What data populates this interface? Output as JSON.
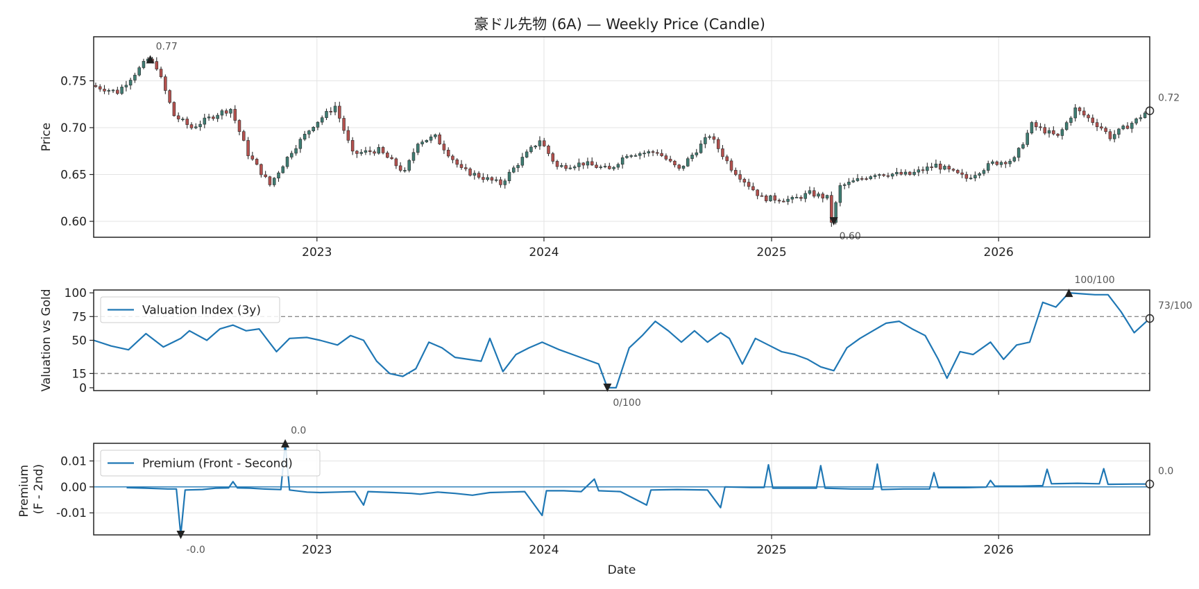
{
  "title": "豪ドル先物 (6A) — Weekly Price (Candle)",
  "chart_data": [
    {
      "type": "candlestick",
      "ylabel": "Price",
      "ylim": [
        0.583,
        0.797
      ],
      "yticks": [
        "0.60",
        "0.65",
        "0.70",
        "0.75"
      ],
      "yticks_values": [
        0.6,
        0.65,
        0.7,
        0.75
      ],
      "x_range": [
        "2022-01-07",
        "2026-09-01"
      ],
      "xticks": [
        "2023",
        "2024",
        "2025",
        "2026"
      ],
      "grid": true,
      "colors": {
        "up": "#3f7d73",
        "down": "#b4514e",
        "wick": "#2a2a2a"
      },
      "anchors": [
        [
          "2022-01-07",
          0.745
        ],
        [
          "2022-02-18",
          0.738
        ],
        [
          "2022-04-08",
          0.773
        ],
        [
          "2022-04-22",
          0.765
        ],
        [
          "2022-05-20",
          0.713
        ],
        [
          "2022-06-17",
          0.7
        ],
        [
          "2022-07-29",
          0.715
        ],
        [
          "2022-08-19",
          0.72
        ],
        [
          "2022-09-16",
          0.672
        ],
        [
          "2022-10-21",
          0.639
        ],
        [
          "2022-11-25",
          0.675
        ],
        [
          "2022-12-30",
          0.703
        ],
        [
          "2023-02-03",
          0.723
        ],
        [
          "2023-03-03",
          0.672
        ],
        [
          "2023-04-14",
          0.676
        ],
        [
          "2023-05-26",
          0.652
        ],
        [
          "2023-06-16",
          0.685
        ],
        [
          "2023-07-14",
          0.69
        ],
        [
          "2023-08-25",
          0.655
        ],
        [
          "2023-10-27",
          0.64
        ],
        [
          "2023-11-24",
          0.662
        ],
        [
          "2023-12-29",
          0.687
        ],
        [
          "2024-01-26",
          0.658
        ],
        [
          "2024-03-08",
          0.662
        ],
        [
          "2024-04-19",
          0.655
        ],
        [
          "2024-05-17",
          0.672
        ],
        [
          "2024-07-05",
          0.674
        ],
        [
          "2024-08-09",
          0.655
        ],
        [
          "2024-09-27",
          0.692
        ],
        [
          "2024-11-01",
          0.657
        ],
        [
          "2024-12-20",
          0.625
        ],
        [
          "2025-02-07",
          0.623
        ],
        [
          "2025-03-07",
          0.63
        ],
        [
          "2025-04-04",
          0.625
        ],
        [
          "2025-04-11",
          0.6
        ],
        [
          "2025-04-25",
          0.637
        ],
        [
          "2025-06-20",
          0.651
        ],
        [
          "2025-08-15",
          0.65
        ],
        [
          "2025-09-26",
          0.66
        ],
        [
          "2025-11-14",
          0.646
        ],
        [
          "2025-12-26",
          0.662
        ],
        [
          "2026-01-30",
          0.666
        ],
        [
          "2026-02-27",
          0.703
        ],
        [
          "2026-04-10",
          0.69
        ],
        [
          "2026-05-08",
          0.72
        ],
        [
          "2026-06-19",
          0.7
        ],
        [
          "2026-07-03",
          0.69
        ],
        [
          "2026-08-14",
          0.708
        ],
        [
          "2026-09-01",
          0.718
        ]
      ],
      "annotations": [
        {
          "label": "0.77",
          "date": "2022-04-08",
          "value": 0.773,
          "marker": "triangle-up"
        },
        {
          "label": "0.60",
          "date": "2025-04-11",
          "value": 0.6,
          "marker": "triangle-down"
        },
        {
          "label": "0.72",
          "date": "2026-09-01",
          "value": 0.718,
          "marker": "circle"
        }
      ]
    },
    {
      "type": "line",
      "ylabel": "Valuation vs Gold",
      "ylim": [
        -3,
        103
      ],
      "yticks": [
        "0",
        "15",
        "50",
        "75",
        "100"
      ],
      "yticks_values": [
        0,
        15,
        50,
        75,
        100
      ],
      "reference_lines": [
        15,
        75
      ],
      "series": [
        {
          "name": "Valuation Index (3y)",
          "color": "#1f77b4",
          "points": [
            [
              "2022-01-07",
              50
            ],
            [
              "2022-02-04",
              44
            ],
            [
              "2022-03-04",
              40
            ],
            [
              "2022-04-01",
              57
            ],
            [
              "2022-04-29",
              43
            ],
            [
              "2022-05-27",
              52
            ],
            [
              "2022-06-10",
              60
            ],
            [
              "2022-07-08",
              50
            ],
            [
              "2022-07-29",
              62
            ],
            [
              "2022-08-19",
              66
            ],
            [
              "2022-09-09",
              60
            ],
            [
              "2022-09-30",
              62
            ],
            [
              "2022-10-28",
              38
            ],
            [
              "2022-11-18",
              52
            ],
            [
              "2022-12-16",
              53
            ],
            [
              "2023-01-06",
              50
            ],
            [
              "2023-02-03",
              45
            ],
            [
              "2023-02-24",
              55
            ],
            [
              "2023-03-17",
              50
            ],
            [
              "2023-04-07",
              28
            ],
            [
              "2023-04-28",
              15
            ],
            [
              "2023-05-19",
              12
            ],
            [
              "2023-06-09",
              20
            ],
            [
              "2023-06-30",
              48
            ],
            [
              "2023-07-21",
              42
            ],
            [
              "2023-08-11",
              32
            ],
            [
              "2023-09-01",
              30
            ],
            [
              "2023-09-22",
              28
            ],
            [
              "2023-10-06",
              52
            ],
            [
              "2023-10-27",
              17
            ],
            [
              "2023-11-17",
              35
            ],
            [
              "2023-12-08",
              42
            ],
            [
              "2023-12-29",
              48
            ],
            [
              "2024-01-26",
              40
            ],
            [
              "2024-02-16",
              35
            ],
            [
              "2024-03-08",
              30
            ],
            [
              "2024-03-29",
              25
            ],
            [
              "2024-04-12",
              0
            ],
            [
              "2024-04-26",
              0
            ],
            [
              "2024-05-17",
              42
            ],
            [
              "2024-06-07",
              55
            ],
            [
              "2024-06-28",
              70
            ],
            [
              "2024-07-19",
              60
            ],
            [
              "2024-08-09",
              48
            ],
            [
              "2024-08-30",
              60
            ],
            [
              "2024-09-20",
              48
            ],
            [
              "2024-10-11",
              58
            ],
            [
              "2024-10-25",
              52
            ],
            [
              "2024-11-15",
              25
            ],
            [
              "2024-12-06",
              52
            ],
            [
              "2024-12-27",
              45
            ],
            [
              "2025-01-17",
              38
            ],
            [
              "2025-02-07",
              35
            ],
            [
              "2025-02-28",
              30
            ],
            [
              "2025-03-21",
              22
            ],
            [
              "2025-04-11",
              18
            ],
            [
              "2025-05-02",
              42
            ],
            [
              "2025-05-23",
              52
            ],
            [
              "2025-06-13",
              60
            ],
            [
              "2025-07-04",
              68
            ],
            [
              "2025-07-25",
              70
            ],
            [
              "2025-08-15",
              62
            ],
            [
              "2025-09-05",
              55
            ],
            [
              "2025-09-26",
              30
            ],
            [
              "2025-10-10",
              10
            ],
            [
              "2025-10-31",
              38
            ],
            [
              "2025-11-21",
              35
            ],
            [
              "2025-12-19",
              48
            ],
            [
              "2026-01-09",
              30
            ],
            [
              "2026-01-30",
              45
            ],
            [
              "2026-02-20",
              48
            ],
            [
              "2026-03-13",
              90
            ],
            [
              "2026-04-03",
              85
            ],
            [
              "2026-04-24",
              100
            ],
            [
              "2026-05-15",
              99
            ],
            [
              "2026-06-05",
              98
            ],
            [
              "2026-06-26",
              98
            ],
            [
              "2026-07-17",
              80
            ],
            [
              "2026-08-07",
              58
            ],
            [
              "2026-09-01",
              73
            ]
          ]
        }
      ],
      "annotations": [
        {
          "label": "100/100",
          "date": "2026-04-24",
          "value": 100,
          "marker": "triangle-up"
        },
        {
          "label": "0/100",
          "date": "2024-04-12",
          "value": 0,
          "marker": "triangle-down"
        },
        {
          "label": "73/100",
          "date": "2026-09-01",
          "value": 73,
          "marker": "circle"
        }
      ]
    },
    {
      "type": "line",
      "ylabel": "Premium\n(F - 2nd)",
      "ylabel_lines": [
        "Premium",
        "(F - 2nd)"
      ],
      "xlabel": "Date",
      "ylim": [
        -0.0185,
        0.0168
      ],
      "yticks": [
        "-0.01",
        "0.00",
        "0.01"
      ],
      "yticks_values": [
        -0.01,
        0.0,
        0.01
      ],
      "reference_lines": [
        0
      ],
      "series": [
        {
          "name": "Premium (Front - Second)",
          "color": "#1f77b4",
          "points": [
            [
              "2022-03-01",
              -0.0003
            ],
            [
              "2022-04-01",
              -0.0005
            ],
            [
              "2022-05-06",
              -0.0008
            ],
            [
              "2022-05-20",
              -0.0008
            ],
            [
              "2022-05-27",
              -0.0185
            ],
            [
              "2022-06-03",
              -0.0012
            ],
            [
              "2022-07-01",
              -0.001
            ],
            [
              "2022-07-22",
              -0.0005
            ],
            [
              "2022-08-12",
              -0.0004
            ],
            [
              "2022-08-19",
              0.002
            ],
            [
              "2022-08-26",
              -0.0004
            ],
            [
              "2022-09-16",
              -0.0005
            ],
            [
              "2022-10-07",
              -0.0008
            ],
            [
              "2022-11-04",
              -0.001
            ],
            [
              "2022-11-11",
              0.0168
            ],
            [
              "2022-11-18",
              -0.0012
            ],
            [
              "2022-12-16",
              -0.002
            ],
            [
              "2023-01-06",
              -0.0022
            ],
            [
              "2023-02-03",
              -0.002
            ],
            [
              "2023-03-03",
              -0.0018
            ],
            [
              "2023-03-17",
              -0.007
            ],
            [
              "2023-03-24",
              -0.0018
            ],
            [
              "2023-05-05",
              -0.0022
            ],
            [
              "2023-06-02",
              -0.0025
            ],
            [
              "2023-06-16",
              -0.0028
            ],
            [
              "2023-07-14",
              -0.002
            ],
            [
              "2023-08-11",
              -0.0025
            ],
            [
              "2023-09-08",
              -0.0032
            ],
            [
              "2023-10-06",
              -0.0022
            ],
            [
              "2023-11-03",
              -0.002
            ],
            [
              "2023-12-01",
              -0.0018
            ],
            [
              "2023-12-29",
              -0.011
            ],
            [
              "2024-01-05",
              -0.0015
            ],
            [
              "2024-02-02",
              -0.0015
            ],
            [
              "2024-03-01",
              -0.0018
            ],
            [
              "2024-03-22",
              0.003
            ],
            [
              "2024-03-29",
              -0.0015
            ],
            [
              "2024-05-03",
              -0.0018
            ],
            [
              "2024-06-14",
              -0.007
            ],
            [
              "2024-06-21",
              -0.0012
            ],
            [
              "2024-08-02",
              -0.001
            ],
            [
              "2024-09-20",
              -0.0012
            ],
            [
              "2024-10-11",
              -0.008
            ],
            [
              "2024-10-18",
              0.0
            ],
            [
              "2024-11-29",
              -0.0002
            ],
            [
              "2024-12-20",
              -0.0002
            ],
            [
              "2024-12-27",
              0.0085
            ],
            [
              "2025-01-03",
              -0.0005
            ],
            [
              "2025-02-28",
              -0.0005
            ],
            [
              "2025-03-14",
              -0.0005
            ],
            [
              "2025-03-21",
              0.0082
            ],
            [
              "2025-03-28",
              -0.0005
            ],
            [
              "2025-05-09",
              -0.0008
            ],
            [
              "2025-06-13",
              -0.0008
            ],
            [
              "2025-06-20",
              0.0088
            ],
            [
              "2025-06-27",
              -0.001
            ],
            [
              "2025-08-01",
              -0.0008
            ],
            [
              "2025-09-12",
              -0.0008
            ],
            [
              "2025-09-19",
              0.0055
            ],
            [
              "2025-09-26",
              -0.0003
            ],
            [
              "2025-11-07",
              -0.0003
            ],
            [
              "2025-12-12",
              -0.0001
            ],
            [
              "2025-12-19",
              0.0025
            ],
            [
              "2025-12-26",
              0.0003
            ],
            [
              "2026-02-06",
              0.0003
            ],
            [
              "2026-03-13",
              0.0005
            ],
            [
              "2026-03-20",
              0.0068
            ],
            [
              "2026-03-27",
              0.0012
            ],
            [
              "2026-05-08",
              0.0014
            ],
            [
              "2026-06-12",
              0.0012
            ],
            [
              "2026-06-19",
              0.007
            ],
            [
              "2026-06-26",
              0.001
            ],
            [
              "2026-08-07",
              0.0011
            ],
            [
              "2026-09-01",
              0.0011
            ]
          ]
        }
      ],
      "annotations": [
        {
          "label": "0.0",
          "date": "2022-11-11",
          "value": 0.0168,
          "marker": "triangle-up"
        },
        {
          "label": "-0.0",
          "date": "2022-05-27",
          "value": -0.0185,
          "marker": "triangle-down"
        },
        {
          "label": "0.0",
          "date": "2026-09-01",
          "value": 0.0011,
          "marker": "circle"
        }
      ]
    }
  ]
}
